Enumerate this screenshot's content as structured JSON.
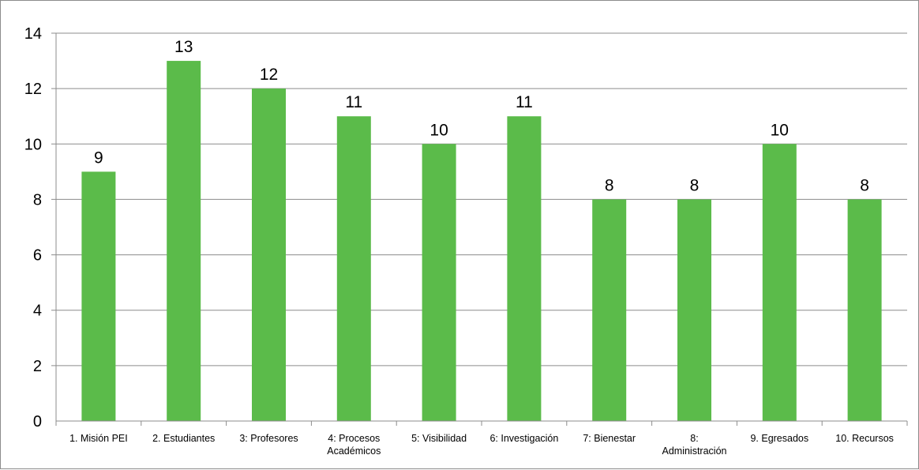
{
  "chart_data": {
    "type": "bar",
    "title": "",
    "xlabel": "",
    "ylabel": "",
    "categories": [
      "1. Misión PEI",
      "2. Estudiantes",
      "3: Profesores",
      "4: Procesos Académicos",
      "5: Visibilidad",
      "6: Investigación",
      "7: Bienestar",
      "8: Administración",
      "9. Egresados",
      "10. Recursos"
    ],
    "category_lines": [
      [
        "1. Misión PEI"
      ],
      [
        "2. Estudiantes"
      ],
      [
        "3: Profesores"
      ],
      [
        "4: Procesos",
        "Académicos"
      ],
      [
        "5: Visibilidad"
      ],
      [
        "6: Investigación"
      ],
      [
        "7: Bienestar"
      ],
      [
        "8:",
        "Administración"
      ],
      [
        "9. Egresados"
      ],
      [
        "10. Recursos"
      ]
    ],
    "values": [
      9,
      13,
      12,
      11,
      10,
      11,
      8,
      8,
      10,
      8
    ],
    "ylim": [
      0,
      14
    ],
    "yticks": [
      0,
      2,
      4,
      6,
      8,
      10,
      12,
      14
    ],
    "data_labels": true,
    "grid": true,
    "legend": "none",
    "bar_color": "#5bbb4a",
    "grid_color": "#8c8c8c"
  }
}
